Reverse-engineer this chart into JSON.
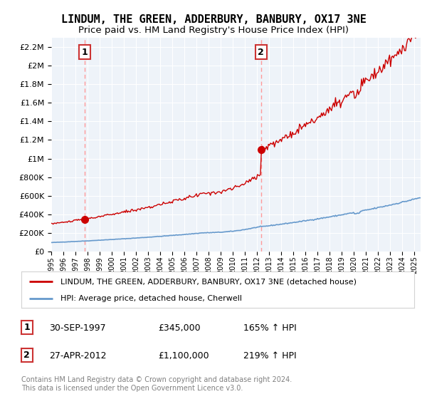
{
  "title": "LINDUM, THE GREEN, ADDERBURY, BANBURY, OX17 3NE",
  "subtitle": "Price paid vs. HM Land Registry's House Price Index (HPI)",
  "ylim": [
    0,
    2300000
  ],
  "yticks": [
    0,
    200000,
    400000,
    600000,
    800000,
    1000000,
    1200000,
    1400000,
    1600000,
    1800000,
    2000000,
    2200000
  ],
  "xlim_start": 1995.0,
  "xlim_end": 2025.5,
  "xticks": [
    1995,
    1996,
    1997,
    1998,
    1999,
    2000,
    2001,
    2002,
    2003,
    2004,
    2005,
    2006,
    2007,
    2008,
    2009,
    2010,
    2011,
    2012,
    2013,
    2014,
    2015,
    2016,
    2017,
    2018,
    2019,
    2020,
    2021,
    2022,
    2023,
    2024,
    2025
  ],
  "sale1_x": 1997.75,
  "sale1_y": 345000,
  "sale2_x": 2012.32,
  "sale2_y": 1100000,
  "sale1_label": "1",
  "sale2_label": "2",
  "hpi_color": "#6699cc",
  "price_color": "#cc0000",
  "dashed_color": "#ff9999",
  "bg_color": "#eef3f9",
  "legend_line1": "LINDUM, THE GREEN, ADDERBURY, BANBURY, OX17 3NE (detached house)",
  "legend_line2": "HPI: Average price, detached house, Cherwell",
  "annotation1_date": "30-SEP-1997",
  "annotation1_price": "£345,000",
  "annotation1_hpi": "165% ↑ HPI",
  "annotation2_date": "27-APR-2012",
  "annotation2_price": "£1,100,000",
  "annotation2_hpi": "219% ↑ HPI",
  "footer": "Contains HM Land Registry data © Crown copyright and database right 2024.\nThis data is licensed under the Open Government Licence v3.0."
}
